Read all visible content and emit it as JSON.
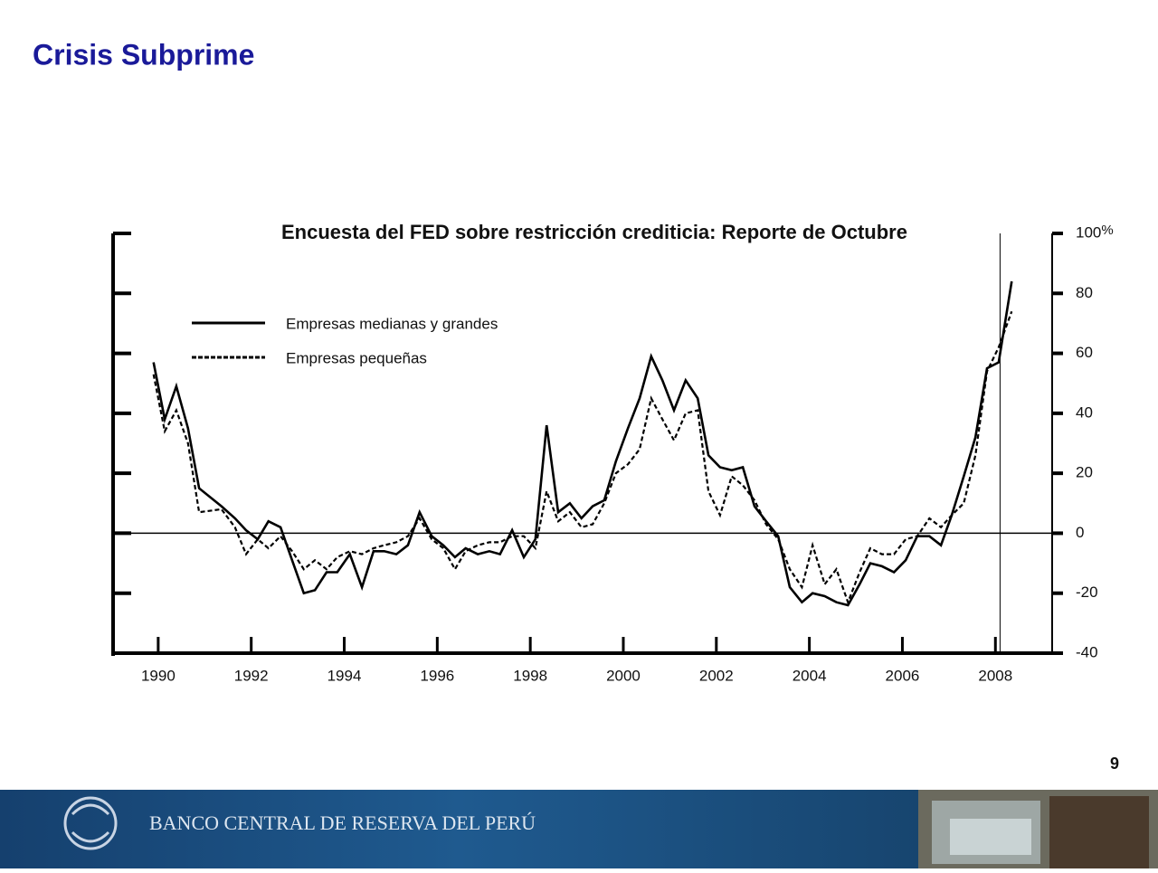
{
  "slide_title": "Crisis Subprime",
  "page_number": "9",
  "footer": "BANCO CENTRAL DE RESERVA DEL PERÚ",
  "chart_data": {
    "type": "line",
    "title": "Encuesta del FED sobre restricción crediticia: Reporte de Octubre",
    "y_label": "%",
    "x": [
      1989.9,
      1990.14,
      1990.39,
      1990.64,
      1990.88,
      1991.36,
      1991.65,
      1991.89,
      1992.14,
      1992.37,
      1992.63,
      1992.88,
      1993.13,
      1993.37,
      1993.62,
      1993.85,
      1994.12,
      1994.38,
      1994.63,
      1994.86,
      1995.12,
      1995.37,
      1995.62,
      1995.88,
      1996.13,
      1996.38,
      1996.61,
      1996.87,
      1997.12,
      1997.35,
      1997.61,
      1997.86,
      1998.11,
      1998.35,
      1998.6,
      1998.85,
      1999.1,
      1999.34,
      1999.59,
      1999.84,
      2000.1,
      2000.35,
      2000.6,
      2000.84,
      2001.09,
      2001.34,
      2001.6,
      2001.83,
      2002.08,
      2002.33,
      2002.57,
      2002.82,
      2003.07,
      2003.33,
      2003.58,
      2003.84,
      2004.07,
      2004.33,
      2004.58,
      2004.83,
      2005.08,
      2005.31,
      2005.56,
      2005.82,
      2006.07,
      2006.32,
      2006.58,
      2006.83,
      2007.06,
      2007.32,
      2007.57,
      2007.82,
      2008.07,
      2008.35
    ],
    "series": [
      {
        "name": "Empresas medianas y grandes",
        "color": "#000000",
        "style": "solid",
        "values": [
          57,
          38,
          49,
          35,
          15,
          9,
          5,
          1,
          -2,
          4,
          2,
          -9,
          -20,
          -19,
          -13,
          -13,
          -7,
          -18,
          -6,
          -6,
          -7,
          -4,
          7,
          -1,
          -4,
          -8,
          -5,
          -7,
          -6,
          -7,
          1,
          -8,
          -2,
          36,
          7,
          10,
          5,
          9,
          11,
          24,
          35,
          45,
          59,
          51,
          41,
          51,
          45,
          26,
          22,
          21,
          22,
          9,
          4,
          -1,
          -18,
          -23,
          -20,
          -21,
          -23,
          -24,
          -17,
          -10,
          -11,
          -13,
          -9,
          -1,
          -1,
          -4,
          6,
          19,
          32,
          55,
          57,
          84
        ]
      },
      {
        "name": "Empresas pequeñas",
        "color": "#000000",
        "style": "dashed",
        "values": [
          53,
          34,
          41,
          30,
          7,
          8,
          2,
          -7,
          -2,
          -5,
          -1,
          -6,
          -12,
          -9,
          -12,
          -8,
          -6,
          -7,
          -5,
          -4,
          -3,
          -1,
          5,
          -2,
          -5,
          -12,
          -6,
          -4,
          -3,
          -3,
          -1,
          -1,
          -5,
          14,
          4,
          7,
          2,
          3,
          10,
          20,
          23,
          28,
          45,
          38,
          31,
          40,
          41,
          14,
          6,
          19,
          16,
          11,
          3,
          -2,
          -12,
          -18,
          -4,
          -17,
          -12,
          -23,
          -13,
          -5,
          -7,
          -7,
          -2,
          -1,
          5,
          2,
          6,
          10,
          26,
          54,
          62,
          74
        ]
      }
    ],
    "xlim": [
      1989.03,
      2009.22
    ],
    "xticks": [
      1990,
      1992,
      1994,
      1996,
      1998,
      2000,
      2002,
      2004,
      2006,
      2008
    ],
    "ylim": [
      -40,
      100
    ],
    "yticks": [
      -40,
      -20,
      0,
      20,
      40,
      60,
      80,
      100
    ],
    "zero_line": 0,
    "reference_x": 2008.1,
    "legend": "upper-left"
  }
}
